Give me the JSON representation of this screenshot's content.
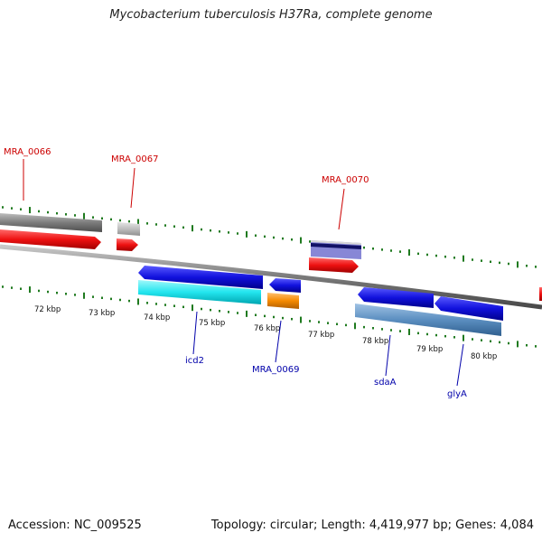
{
  "title": "Mycobacterium tuberculosis H37Ra, complete genome",
  "footer": {
    "accession": "Accession: NC_009525",
    "summary": "Topology: circular; Length: 4,419,977 bp; Genes: 4,084"
  },
  "scale_labels": [
    "72 kbp",
    "73 kbp",
    "74 kbp",
    "75 kbp",
    "76 kbp",
    "77 kbp",
    "78 kbp",
    "79 kbp",
    "80 kbp"
  ],
  "gene_labels": [
    {
      "id": "MRA_0066",
      "text": "MRA_0066",
      "strand": "forward"
    },
    {
      "id": "MRA_0067",
      "text": "MRA_0067",
      "strand": "forward"
    },
    {
      "id": "MRA_0070",
      "text": "MRA_0070",
      "strand": "forward"
    },
    {
      "id": "icd2",
      "text": "icd2",
      "strand": "reverse"
    },
    {
      "id": "MRA_0069",
      "text": "MRA_0069",
      "strand": "reverse"
    },
    {
      "id": "sdaA",
      "text": "sdaA",
      "strand": "reverse"
    },
    {
      "id": "glyA",
      "text": "glyA",
      "strand": "reverse"
    }
  ],
  "colors": {
    "forward_label": "#cc0000",
    "reverse_label": "#0000aa",
    "backbone": "#808080",
    "tick": "#1f7a1f",
    "forward_cds": "#ee1111",
    "reverse_cds": "#1111dd",
    "cyan_feature": "#22e5ee",
    "orange_feature": "#f58a00",
    "steelblue_feature": "#5b8ec0"
  }
}
